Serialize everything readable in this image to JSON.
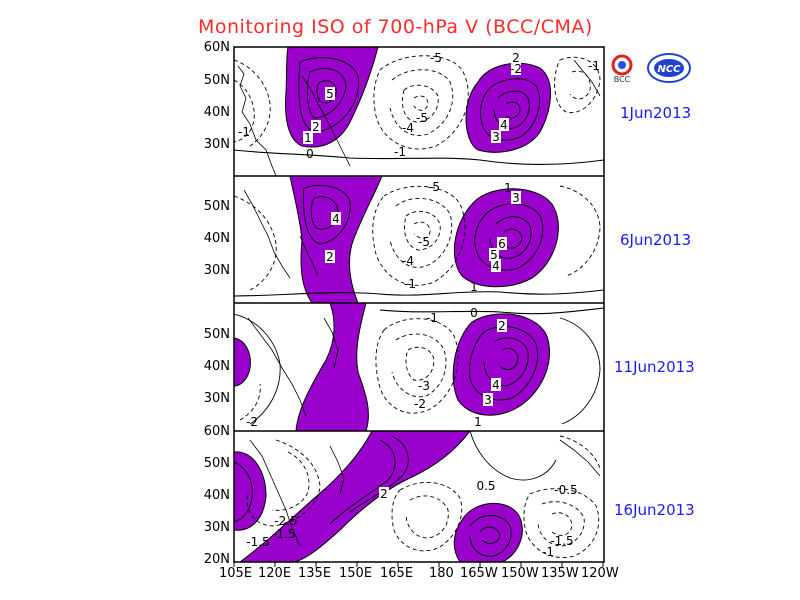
{
  "title": "Monitoring ISO of 700-hPa V (BCC/CMA)",
  "logos": [
    {
      "icon": "bcc-logo",
      "text": "BCC"
    },
    {
      "icon": "ncc-logo",
      "text": "NCC"
    }
  ],
  "colors": {
    "positive_fill": "#9900cc",
    "title": "#ff2a2a",
    "date_label": "#1a1aff"
  },
  "longitude_ticks": [
    "105E",
    "120E",
    "135E",
    "150E",
    "165E",
    "180",
    "165W",
    "150W",
    "135W",
    "120W"
  ],
  "panels": [
    {
      "date": "1Jun2013",
      "lat_ticks": [
        "60N",
        "50N",
        "40N",
        "30N"
      ],
      "contour_labels": [
        "5",
        "2",
        "1",
        "0",
        "-1",
        "-1",
        "-5",
        "-4",
        "-5",
        "-2",
        "4",
        "3",
        "2",
        "-1"
      ]
    },
    {
      "date": "6Jun2013",
      "lat_ticks": [
        "50N",
        "40N",
        "30N"
      ],
      "contour_labels": [
        "4",
        "2",
        "-5",
        "-4",
        "-5",
        "-1",
        "6",
        "5",
        "4",
        "3",
        "1",
        "1"
      ]
    },
    {
      "date": "11Jun2013",
      "lat_ticks": [
        "50N",
        "40N",
        "30N"
      ],
      "contour_labels": [
        "-2",
        "-3",
        "-2",
        "-1",
        "0",
        "2",
        "4",
        "3",
        "1"
      ]
    },
    {
      "date": "16Jun2013",
      "lat_ticks": [
        "60N",
        "50N",
        "40N",
        "30N",
        "20N"
      ],
      "contour_labels": [
        "2",
        "0.5",
        "-0.5",
        "-1.5",
        "-1.5",
        "-2.5",
        "-1.5",
        "-1"
      ]
    }
  ]
}
